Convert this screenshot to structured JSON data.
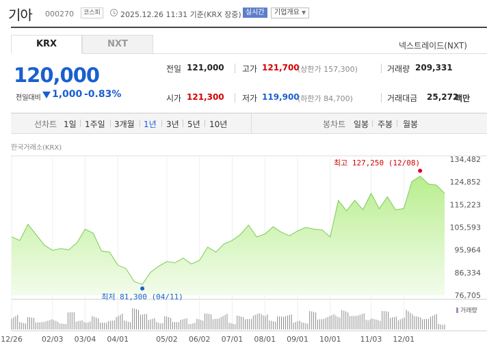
{
  "header": {
    "title": "기아",
    "code": "000270",
    "market_badge": "코스피",
    "datetime": "2025.12.26 11:31 기준(KRX 장중)",
    "realtime_badge": "실시간",
    "company_button": "기업개요"
  },
  "tabs": [
    {
      "label": "KRX",
      "selected": true
    },
    {
      "label": "NXT",
      "selected": false
    }
  ],
  "nxt_link": "넥스트레이드(NXT)",
  "price": {
    "current": "120,000",
    "change_label": "전일대비",
    "change_value": "1,000",
    "change_pct": "-0.83%",
    "direction": "down"
  },
  "quotes": {
    "prev_close_label": "전일",
    "prev_close": "121,000",
    "high_label": "고가",
    "high": "121,700",
    "upper_limit": "(상한가 157,300)",
    "volume_label": "거래량",
    "volume": "209,331",
    "open_label": "시가",
    "open": "121,300",
    "low_label": "저가",
    "low": "119,900",
    "lower_limit": "(하한가 84,700)",
    "value_label": "거래대금",
    "value": "25,272",
    "value_unit": "백만"
  },
  "periods": {
    "section_label": "선차트",
    "items": [
      "1일",
      "1주일",
      "3개월",
      "1년",
      "3년",
      "5년",
      "10년"
    ],
    "selected": "1년"
  },
  "candle": {
    "section_label": "봉차트",
    "items": [
      "일봉",
      "주봉",
      "월봉"
    ]
  },
  "chart_source": "한국거래소(KRX)",
  "colors": {
    "accent_blue": "#1a5fd0",
    "up_red": "#d20000",
    "area_fill": "#c9f2a8",
    "line": "#7bc957",
    "volume_bar": "#777777"
  },
  "chart_data": {
    "type": "area",
    "title": "",
    "xlabel": "",
    "ylabel": "",
    "ylim": [
      76705,
      134482
    ],
    "y_ticks": [
      "134,482",
      "124,852",
      "115,223",
      "105,593",
      "95,964",
      "86,334",
      "76,705"
    ],
    "x_ticks": [
      "12/26",
      "02/03",
      "03/04",
      "04/01",
      "05/02",
      "06/02",
      "07/01",
      "08/01",
      "09/01",
      "10/01",
      "11/03",
      "12/01"
    ],
    "x": [
      "12/26",
      "01/02",
      "01/08",
      "01/14",
      "01/20",
      "02/03",
      "02/10",
      "02/18",
      "02/25",
      "03/04",
      "03/11",
      "03/18",
      "03/25",
      "04/01",
      "04/04",
      "04/08",
      "04/11",
      "04/17",
      "04/24",
      "05/02",
      "05/12",
      "05/20",
      "05/28",
      "06/02",
      "06/09",
      "06/16",
      "06/23",
      "07/01",
      "07/08",
      "07/15",
      "07/22",
      "08/01",
      "08/08",
      "08/18",
      "08/25",
      "09/01",
      "09/08",
      "09/15",
      "09/22",
      "10/01",
      "10/02",
      "10/10",
      "10/17",
      "10/24",
      "11/03",
      "11/10",
      "11/17",
      "11/24",
      "12/01",
      "12/05",
      "12/08",
      "12/12",
      "12/19",
      "12/26"
    ],
    "values": [
      101500,
      100000,
      106800,
      102500,
      98000,
      95800,
      96500,
      96000,
      99000,
      104800,
      103000,
      95500,
      95000,
      89500,
      88000,
      82500,
      81300,
      86500,
      89000,
      91000,
      90500,
      92500,
      90000,
      91500,
      97200,
      95000,
      98500,
      100000,
      102500,
      106500,
      101500,
      102700,
      105800,
      103500,
      102000,
      104000,
      105500,
      104800,
      104500,
      101500,
      117000,
      112500,
      117000,
      113000,
      120000,
      113500,
      118500,
      113000,
      113500,
      125000,
      127250,
      124000,
      123500,
      120000
    ],
    "max_label": "최고 127,250 (12/08)",
    "min_label": "최저 81,300 (04/11)",
    "volume_label": "거래량",
    "volume": [
      32,
      14,
      20,
      12,
      18,
      22,
      10,
      28,
      16,
      19,
      24,
      11,
      15,
      33,
      18,
      35,
      25,
      21,
      17,
      23,
      12,
      19,
      15,
      20,
      26,
      18,
      31,
      14,
      23,
      17,
      29,
      38,
      16,
      21,
      25,
      19,
      14,
      30,
      17,
      27,
      34,
      33,
      22,
      28,
      26,
      19,
      30,
      21,
      24,
      40,
      22,
      17,
      28,
      13
    ]
  }
}
